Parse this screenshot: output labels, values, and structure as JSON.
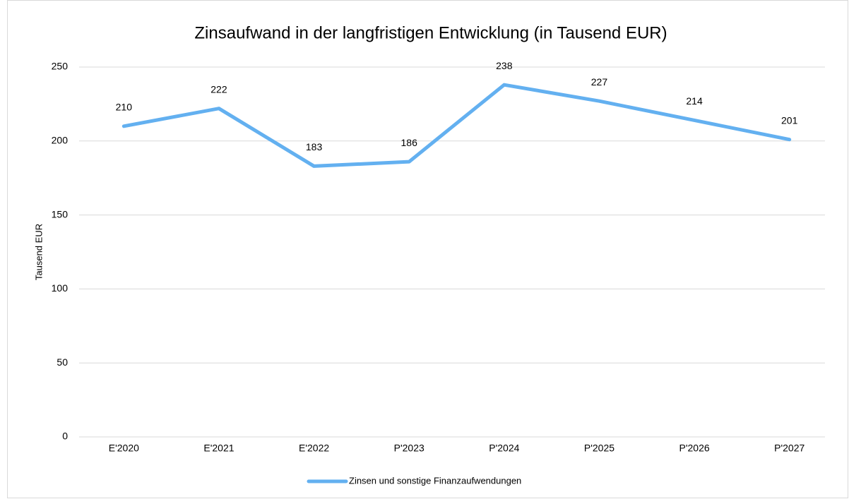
{
  "chart_data": {
    "type": "line",
    "title": "Zinsaufwand in der langfristigen Entwicklung (in Tausend EUR)",
    "ylabel": "Tausend EUR",
    "categories": [
      "E'2020",
      "E'2021",
      "E'2022",
      "P'2023",
      "P'2024",
      "P'2025",
      "P'2026",
      "P'2027"
    ],
    "series": [
      {
        "name": "Zinsen und sonstige Finanzaufwendungen",
        "color": "#63b0f0",
        "values": [
          210,
          222,
          183,
          186,
          238,
          227,
          214,
          201
        ]
      }
    ],
    "ylim": [
      0,
      250
    ],
    "yticks": [
      0,
      50,
      100,
      150,
      200,
      250
    ],
    "grid": true,
    "legend": "bottom"
  }
}
